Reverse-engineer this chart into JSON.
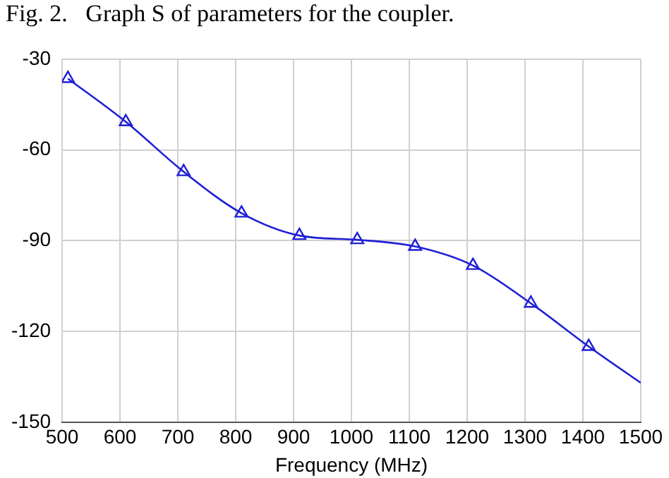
{
  "chart_data": {
    "type": "line",
    "title": "Fig. 2.   Graph S of parameters for the coupler.",
    "xlabel": "Frequency (MHz)",
    "xlim": [
      500,
      1500
    ],
    "xticks": [
      500,
      600,
      700,
      800,
      900,
      1000,
      1100,
      1200,
      1300,
      1400,
      1500
    ],
    "ylim": [
      -150,
      -30
    ],
    "yticks": [
      -150,
      -120,
      -90,
      -60,
      -30
    ],
    "grid": true,
    "series": [
      {
        "type": "line",
        "marker": "none",
        "color": "#1f1fd6",
        "x": [
          510,
          610,
          710,
          810,
          910,
          1010,
          1110,
          1210,
          1310,
          1410,
          1500
        ],
        "values": [
          -36.4,
          -50.7,
          -67.2,
          -80.9,
          -88.3,
          -89.7,
          -91.9,
          -98.2,
          -110.7,
          -125,
          -137
        ]
      },
      {
        "type": "scatter",
        "marker": "triangle",
        "color": "#1f1fd6",
        "x": [
          510,
          610,
          710,
          810,
          910,
          1010,
          1110,
          1210,
          1310,
          1410
        ],
        "values": [
          -36.4,
          -50.7,
          -67.2,
          -80.9,
          -88.3,
          -89.7,
          -91.9,
          -98.2,
          -110.7,
          -125
        ]
      }
    ]
  }
}
